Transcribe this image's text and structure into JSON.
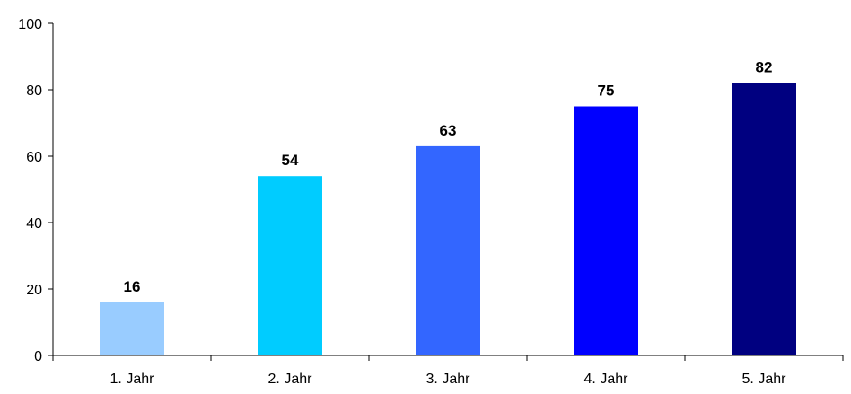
{
  "chart_data": {
    "type": "bar",
    "categories": [
      "1. Jahr",
      "2. Jahr",
      "3. Jahr",
      "4. Jahr",
      "5. Jahr"
    ],
    "values": [
      16,
      54,
      63,
      75,
      82
    ],
    "value_labels": [
      "16",
      "54",
      "63",
      "75",
      "82"
    ],
    "bar_colors": [
      "#99CCFF",
      "#00CCFF",
      "#3366FF",
      "#0000FF",
      "#000080"
    ],
    "ylim": [
      0,
      100
    ],
    "yticks": [
      0,
      20,
      40,
      60,
      80,
      100
    ],
    "ytick_labels": [
      "0",
      "20",
      "40",
      "60",
      "80",
      "100"
    ],
    "grid": false,
    "legend": false
  }
}
